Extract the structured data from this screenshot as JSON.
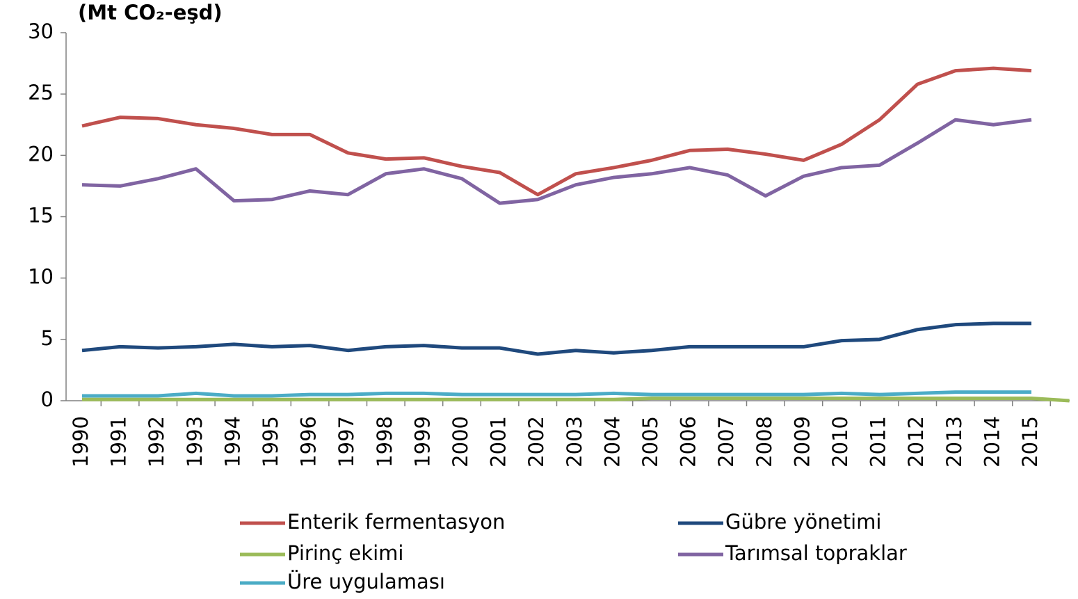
{
  "chart_data": {
    "type": "line",
    "title": "(Mt CO₂-eşd)",
    "categories": [
      "1990",
      "1991",
      "1992",
      "1993",
      "1994",
      "1995",
      "1996",
      "1997",
      "1998",
      "1999",
      "2000",
      "2001",
      "2002",
      "2003",
      "2004",
      "2005",
      "2006",
      "2007",
      "2008",
      "2009",
      "2010",
      "2011",
      "2012",
      "2013",
      "2014",
      "2015",
      null
    ],
    "series": [
      {
        "name": "Enterik fermentasyon",
        "color": "#c0504d",
        "values": [
          22.4,
          23.1,
          23.0,
          22.5,
          22.2,
          21.7,
          21.7,
          20.2,
          19.7,
          19.8,
          19.1,
          18.6,
          16.8,
          18.5,
          19.0,
          19.6,
          20.4,
          20.5,
          20.1,
          19.6,
          20.9,
          22.9,
          25.8,
          26.9,
          27.1,
          26.9,
          null
        ]
      },
      {
        "name": "Gübre yönetimi",
        "color": "#1f497d",
        "values": [
          4.1,
          4.4,
          4.3,
          4.4,
          4.6,
          4.4,
          4.5,
          4.1,
          4.4,
          4.5,
          4.3,
          4.3,
          3.8,
          4.1,
          3.9,
          4.1,
          4.4,
          4.4,
          4.4,
          4.4,
          4.9,
          5.0,
          5.8,
          6.2,
          6.3,
          6.3,
          null
        ]
      },
      {
        "name": "Pirinç ekimi",
        "color": "#9bbb59",
        "values": [
          0.1,
          0.1,
          0.1,
          0.1,
          0.1,
          0.1,
          0.1,
          0.1,
          0.1,
          0.1,
          0.1,
          0.1,
          0.1,
          0.1,
          0.1,
          0.2,
          0.2,
          0.2,
          0.2,
          0.2,
          0.2,
          0.2,
          0.2,
          0.2,
          0.2,
          0.2,
          0
        ]
      },
      {
        "name": "Tarımsal topraklar",
        "color": "#8064a2",
        "values": [
          17.6,
          17.5,
          18.1,
          18.9,
          16.3,
          16.4,
          17.1,
          16.8,
          18.5,
          18.9,
          18.1,
          16.1,
          16.4,
          17.6,
          18.2,
          18.5,
          19.0,
          18.4,
          16.7,
          18.3,
          19.0,
          19.2,
          21.0,
          22.9,
          22.5,
          22.9,
          null
        ]
      },
      {
        "name": "Üre uygulaması",
        "color": "#4bacc6",
        "values": [
          0.4,
          0.4,
          0.4,
          0.6,
          0.4,
          0.4,
          0.5,
          0.5,
          0.6,
          0.6,
          0.5,
          0.5,
          0.5,
          0.5,
          0.6,
          0.5,
          0.5,
          0.5,
          0.5,
          0.5,
          0.6,
          0.5,
          0.6,
          0.7,
          0.7,
          0.7,
          null
        ]
      }
    ],
    "ylim": [
      0,
      30
    ],
    "yticks": [
      0,
      5,
      10,
      15,
      20,
      25,
      30
    ],
    "grid": false
  }
}
